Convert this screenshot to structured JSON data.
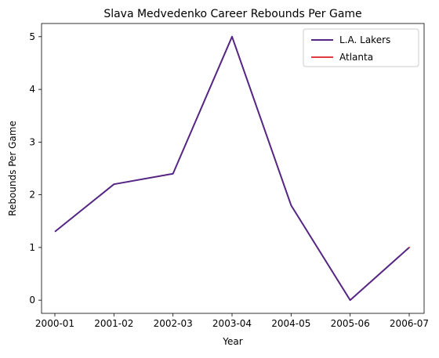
{
  "chart_data": {
    "type": "line",
    "title": "Slava Medvedenko Career Rebounds Per Game",
    "xlabel": "Year",
    "ylabel": "Rebounds Per Game",
    "categories": [
      "2000-01",
      "2001-02",
      "2002-03",
      "2003-04",
      "2004-05",
      "2005-06",
      "2006-07"
    ],
    "ylim": [
      -0.25,
      5.25
    ],
    "yticks": [
      0,
      1,
      2,
      3,
      4,
      5
    ],
    "grid": false,
    "legend_position": "top-right",
    "series": [
      {
        "name": "L.A. Lakers",
        "color": "#552583",
        "values": [
          1.3,
          2.2,
          2.4,
          5.0,
          1.8,
          0.0,
          1.0
        ]
      },
      {
        "name": "Atlanta",
        "color": "#E03A3E",
        "values": [
          null,
          null,
          null,
          null,
          null,
          null,
          1.0
        ]
      }
    ]
  }
}
